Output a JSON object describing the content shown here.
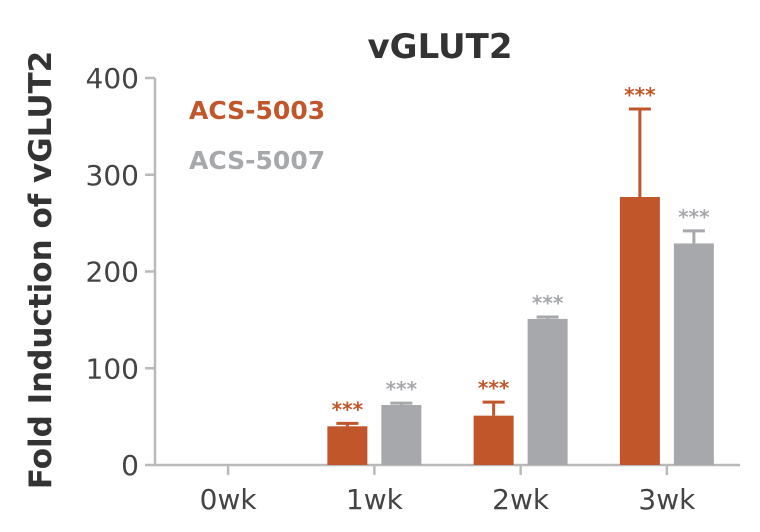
{
  "chart_data": {
    "type": "bar",
    "title": "vGLUT2",
    "xlabel": "",
    "ylabel": "Fold Induction of vGLUT2",
    "ylim": [
      0,
      400
    ],
    "yticks": [
      "0",
      "100",
      "200",
      "300",
      "400"
    ],
    "categories": [
      "0wk",
      "1wk",
      "2wk",
      "3wk"
    ],
    "grid": false,
    "legend_position": "top-left",
    "series": [
      {
        "name": "ACS-5003",
        "color": "#C0562A",
        "values": [
          0,
          40,
          51,
          277
        ],
        "error_upper": [
          0,
          43,
          65,
          368
        ],
        "significance": [
          "",
          "***",
          "***",
          "***"
        ]
      },
      {
        "name": "ACS-5007",
        "color": "#A6A8AB",
        "values": [
          0,
          62,
          151,
          229
        ],
        "error_upper": [
          0,
          64,
          153,
          242
        ],
        "significance": [
          "",
          "***",
          "***",
          "***"
        ]
      }
    ]
  }
}
